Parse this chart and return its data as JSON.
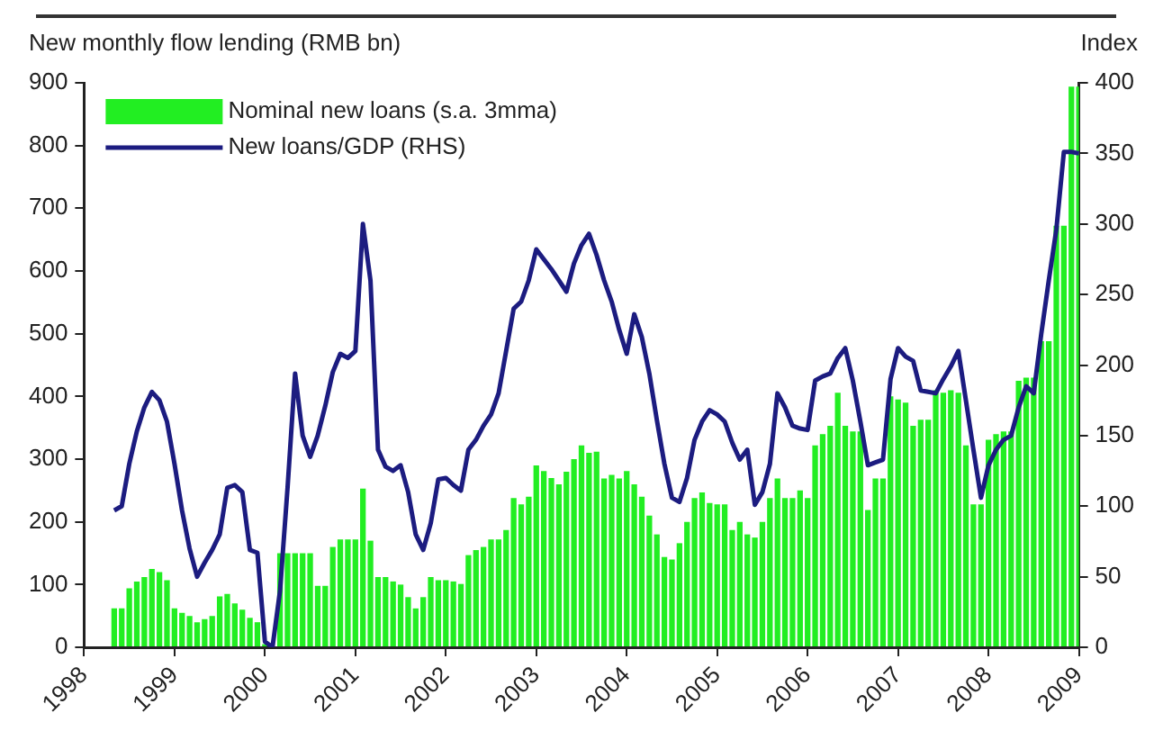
{
  "chart_data": {
    "type": "bar",
    "ylabel": "New monthly flow lending (RMB bn)",
    "y2label": "Index",
    "categories": [
      "1998",
      null,
      null,
      null,
      null,
      null,
      null,
      null,
      null,
      null,
      null,
      null,
      "1999",
      null,
      null,
      null,
      null,
      null,
      null,
      null,
      null,
      null,
      null,
      null,
      "2000",
      null,
      null,
      null,
      null,
      null,
      null,
      null,
      null,
      null,
      null,
      null,
      "2001",
      null,
      null,
      null,
      null,
      null,
      null,
      null,
      null,
      null,
      null,
      null,
      "2002",
      null,
      null,
      null,
      null,
      null,
      null,
      null,
      null,
      null,
      null,
      null,
      "2003",
      null,
      null,
      null,
      null,
      null,
      null,
      null,
      null,
      null,
      null,
      null,
      "2004",
      null,
      null,
      null,
      null,
      null,
      null,
      null,
      null,
      null,
      null,
      null,
      "2005",
      null,
      null,
      null,
      null,
      null,
      null,
      null,
      null,
      null,
      null,
      null,
      "2006",
      null,
      null,
      null,
      null,
      null,
      null,
      null,
      null,
      null,
      null,
      null,
      "2007",
      null,
      null,
      null,
      null,
      null,
      null,
      null,
      null,
      null,
      null,
      null,
      "2008",
      null,
      null,
      null,
      null,
      null,
      null,
      null,
      null,
      null,
      null,
      null,
      "2009"
    ],
    "series": [
      {
        "name": "Nominal new loans (s.a. 3mma)",
        "type": "bar",
        "color": "#22ee22",
        "values": [
          null,
          null,
          null,
          null,
          62,
          62,
          94,
          105,
          112,
          125,
          120,
          107,
          62,
          55,
          50,
          40,
          45,
          50,
          81,
          85,
          70,
          60,
          47,
          40,
          5,
          0,
          150,
          150,
          150,
          150,
          150,
          98,
          98,
          160,
          172,
          172,
          172,
          253,
          170,
          112,
          112,
          105,
          100,
          80,
          62,
          80,
          112,
          107,
          107,
          105,
          101,
          147,
          155,
          160,
          172,
          172,
          187,
          238,
          228,
          240,
          290,
          281,
          270,
          260,
          280,
          300,
          322,
          310,
          312,
          269,
          275,
          269,
          281,
          260,
          240,
          210,
          180,
          144,
          140,
          166,
          200,
          238,
          247,
          230,
          228,
          228,
          187,
          200,
          180,
          175,
          200,
          238,
          269,
          238,
          238,
          250,
          238,
          322,
          340,
          353,
          406,
          353,
          344,
          344,
          219,
          269,
          269,
          400,
          395,
          390,
          353,
          363,
          363,
          410,
          406,
          410,
          406,
          322,
          228,
          228,
          331,
          340,
          344,
          344,
          425,
          430,
          430,
          488,
          488,
          672,
          672,
          894,
          894
        ]
      },
      {
        "name": "New loans/GDP (RHS)",
        "type": "line",
        "axis": "y2",
        "color": "#1c1c80",
        "values": [
          null,
          null,
          null,
          null,
          97,
          100,
          130,
          153,
          170,
          181,
          175,
          160,
          130,
          97,
          70,
          50,
          60,
          69,
          80,
          113,
          115,
          110,
          69,
          67,
          4,
          0,
          40,
          113,
          194,
          150,
          135,
          150,
          171,
          195,
          208,
          205,
          210,
          300,
          260,
          140,
          128,
          125,
          129,
          110,
          80,
          69,
          88,
          119,
          120,
          115,
          111,
          140,
          147,
          157,
          165,
          180,
          210,
          240,
          245,
          260,
          282,
          275,
          268,
          260,
          252,
          272,
          285,
          293,
          278,
          260,
          245,
          225,
          208,
          236,
          220,
          194,
          161,
          130,
          106,
          103,
          120,
          147,
          160,
          168,
          165,
          160,
          145,
          133,
          140,
          101,
          110,
          130,
          180,
          170,
          157,
          155,
          154,
          189,
          192,
          194,
          205,
          212,
          189,
          160,
          129,
          131,
          133,
          190,
          212,
          206,
          203,
          182,
          181,
          180,
          190,
          199,
          210,
          175,
          140,
          106,
          129,
          140,
          147,
          150,
          170,
          185,
          180,
          222,
          260,
          296,
          351,
          351,
          350
        ]
      }
    ],
    "ylim": [
      0,
      900
    ],
    "yticks": [
      0,
      100,
      200,
      300,
      400,
      500,
      600,
      700,
      800,
      900
    ],
    "y2lim": [
      0,
      400
    ],
    "y2ticks": [
      0,
      50,
      100,
      150,
      200,
      250,
      300,
      350,
      400
    ],
    "grid": false,
    "legend": "top left",
    "marker": "none",
    "line_style": "solid"
  }
}
